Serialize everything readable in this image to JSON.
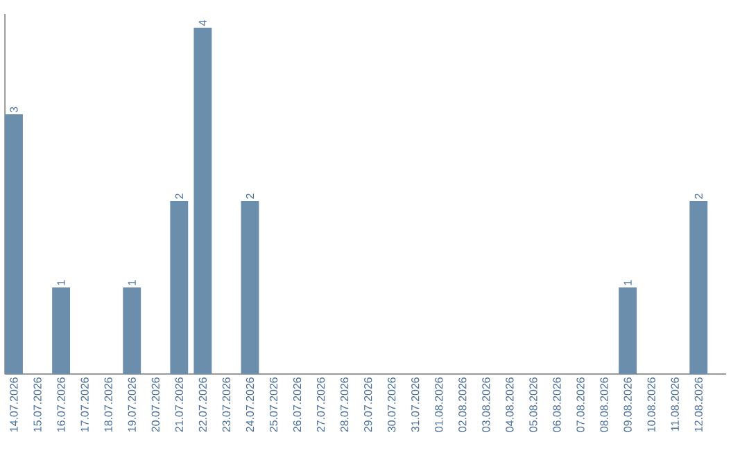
{
  "chart_data": {
    "type": "bar",
    "categories": [
      "14.07.2026",
      "15.07.2026",
      "16.07.2026",
      "17.07.2026",
      "18.07.2026",
      "19.07.2026",
      "20.07.2026",
      "21.07.2026",
      "22.07.2026",
      "23.07.2026",
      "24.07.2026",
      "25.07.2026",
      "26.07.2026",
      "27.07.2026",
      "28.07.2026",
      "29.07.2026",
      "30.07.2026",
      "31.07.2026",
      "01.08.2026",
      "02.08.2026",
      "03.08.2026",
      "04.08.2026",
      "05.08.2026",
      "06.08.2026",
      "07.08.2026",
      "08.08.2026",
      "09.08.2026",
      "10.08.2026",
      "11.08.2026",
      "12.08.2026"
    ],
    "values": [
      3,
      0,
      1,
      0,
      0,
      1,
      0,
      2,
      4,
      0,
      2,
      0,
      0,
      0,
      0,
      0,
      0,
      0,
      0,
      0,
      0,
      0,
      0,
      0,
      0,
      0,
      1,
      0,
      0,
      2
    ],
    "value_labels": [
      "3",
      null,
      "1",
      null,
      null,
      "1",
      null,
      "2",
      "4",
      null,
      "2",
      null,
      null,
      null,
      null,
      null,
      null,
      null,
      null,
      null,
      null,
      null,
      null,
      null,
      null,
      null,
      "1",
      null,
      null,
      "2"
    ],
    "color": "#6c8ead"
  }
}
